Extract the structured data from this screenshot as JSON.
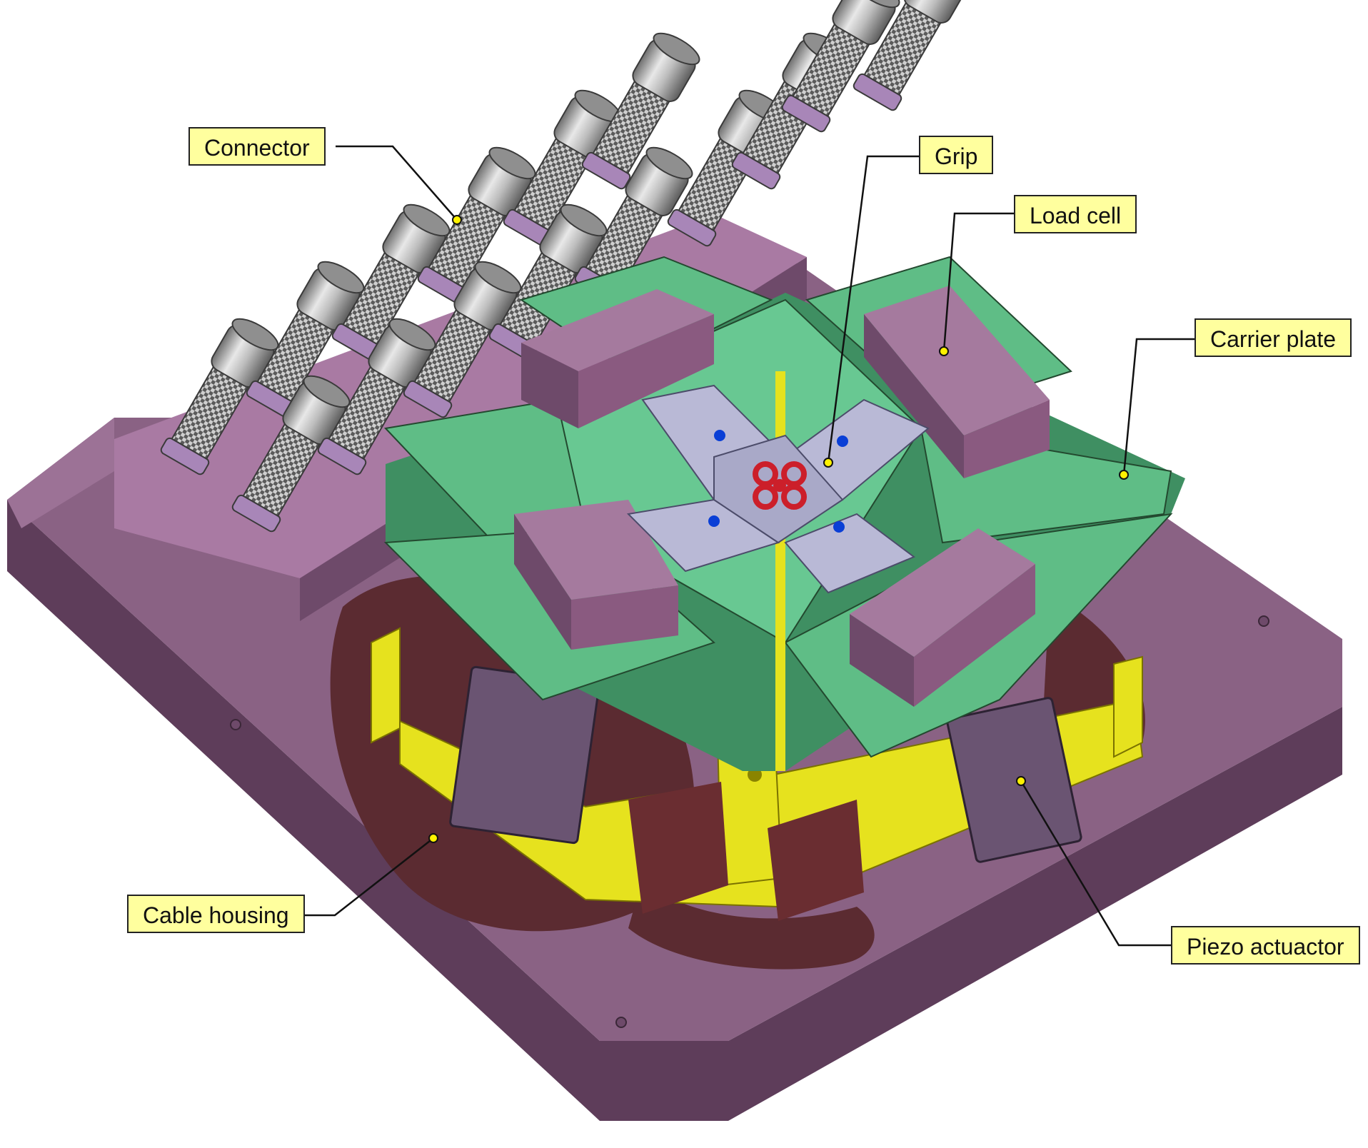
{
  "labels": {
    "connector": "Connector",
    "grip": "Grip",
    "load_cell": "Load cell",
    "carrier_plate": "Carrier plate",
    "cable_housing": "Cable housing",
    "piezo_actuator": "Piezo actuactor"
  },
  "colors": {
    "base_plate": "#8a6284",
    "base_plate_dark": "#5e3d5a",
    "carrier_plate": "#5fbd86",
    "carrier_plate_dark": "#3f8f62",
    "load_cell": "#8a5a80",
    "grip": "#b9b9d6",
    "frame": "#e6e21e",
    "actuator": "#6a5472",
    "connector": "#b8b8b8",
    "specimen": "#cc1f2a",
    "label_fill": "#ffff9e",
    "pointer_dot": "#fff200"
  }
}
